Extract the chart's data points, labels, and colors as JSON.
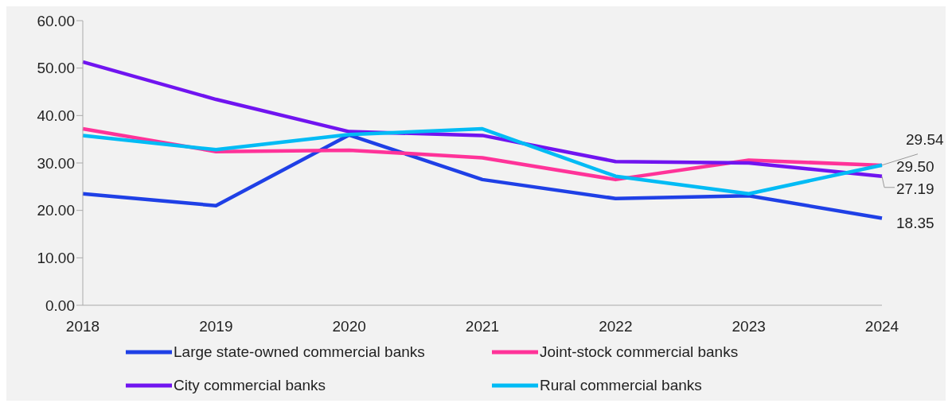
{
  "chart_data": {
    "type": "line",
    "categories": [
      "2018",
      "2019",
      "2020",
      "2021",
      "2022",
      "2023",
      "2024"
    ],
    "series": [
      {
        "name": "Large state-owned commercial banks",
        "color": "#1f40e6",
        "values": [
          23.5,
          21.0,
          35.9,
          26.5,
          22.5,
          23.1,
          18.35
        ],
        "value_labels": [
          null,
          null,
          null,
          null,
          null,
          null,
          "18.35"
        ]
      },
      {
        "name": "Joint-stock commercial banks",
        "color": "#ff3399",
        "values": [
          37.2,
          32.4,
          32.7,
          31.1,
          26.5,
          30.6,
          29.5
        ],
        "value_labels": [
          null,
          null,
          null,
          null,
          null,
          null,
          "29.50"
        ]
      },
      {
        "name": "City commercial banks",
        "color": "#7014f0",
        "values": [
          51.3,
          43.4,
          36.6,
          35.8,
          30.3,
          30.0,
          27.19
        ],
        "value_labels": [
          null,
          null,
          null,
          null,
          null,
          null,
          "27.19"
        ]
      },
      {
        "name": "Rural commercial banks",
        "color": "#00bbf5",
        "values": [
          35.8,
          32.8,
          36.0,
          37.2,
          27.2,
          23.5,
          29.54
        ],
        "value_labels": [
          null,
          null,
          null,
          null,
          null,
          null,
          "29.54"
        ]
      }
    ],
    "ylim": [
      0,
      60
    ],
    "yticks": [
      {
        "value": 0,
        "label": "0.00"
      },
      {
        "value": 10,
        "label": "10.00"
      },
      {
        "value": 20,
        "label": "20.00"
      },
      {
        "value": 30,
        "label": "30.00"
      },
      {
        "value": 40,
        "label": "40.00"
      },
      {
        "value": 50,
        "label": "50.00"
      },
      {
        "value": 60,
        "label": "60.00"
      }
    ],
    "grid": false,
    "legend": "bottom",
    "marker": "none",
    "line_style": "solid"
  }
}
